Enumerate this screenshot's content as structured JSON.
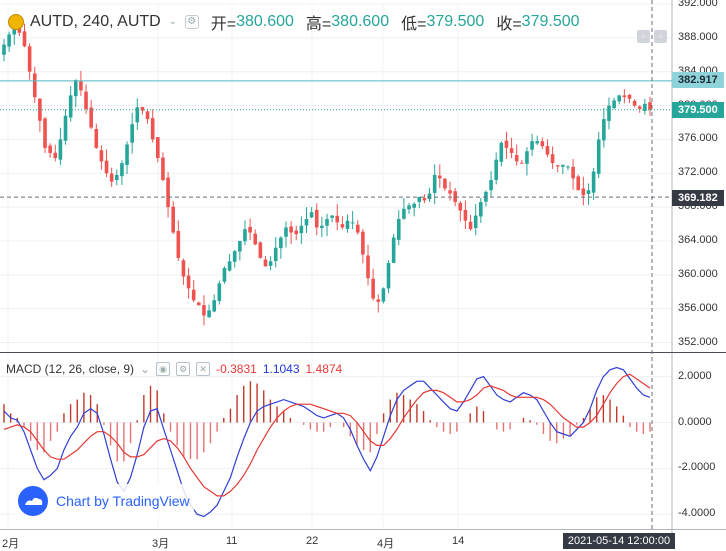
{
  "header": {
    "symbol": "AUTD, 240, AUTD",
    "open_label": "开=",
    "open": "380.600",
    "high_label": "高=",
    "high": "380.600",
    "low_label": "低=",
    "low": "379.500",
    "close_label": "收=",
    "close": "379.500"
  },
  "price_tags": {
    "upper": "382.917",
    "last": "379.500",
    "lower": "369.182"
  },
  "y_ticks": [
    "392.000",
    "388.000",
    "384.000",
    "380.000",
    "376.000",
    "372.000",
    "368.000",
    "364.000",
    "360.000",
    "356.000",
    "352.000"
  ],
  "macd_y_ticks": [
    "2.0000",
    "0.0000",
    "-2.0000",
    "-4.0000"
  ],
  "x_ticks": [
    "2月",
    "3月",
    "11",
    "22",
    "4月",
    "14"
  ],
  "time_tag": "2021-05-14 12:00:00",
  "macd": {
    "label": "MACD (12, 26, close, 9)",
    "hist": "-0.3831",
    "macd": "1.1043",
    "signal": "1.4874"
  },
  "logo_text": "Chart by TradingView",
  "chart_data": {
    "type": "candlestick",
    "symbol": "AUTD",
    "interval": "240",
    "ylim": [
      351,
      392
    ],
    "x_start": "2021-01-29",
    "x_end": "2021-05-14",
    "x_tick_labels": [
      "2月",
      "3月",
      "11",
      "22",
      "4月",
      "14"
    ],
    "close": [
      387.2,
      388.4,
      389.8,
      388.6,
      387.0,
      384.0,
      381.0,
      378.2,
      375.0,
      374.4,
      373.8,
      376.0,
      378.8,
      381.2,
      383.0,
      381.8,
      379.6,
      377.4,
      375.0,
      373.4,
      372.0,
      371.0,
      371.8,
      373.2,
      375.4,
      377.8,
      379.8,
      379.4,
      378.4,
      376.0,
      373.8,
      371.2,
      368.0,
      365.0,
      362.0,
      359.8,
      358.4,
      357.0,
      356.4,
      355.2,
      355.8,
      357.0,
      359.0,
      360.8,
      361.6,
      362.8,
      364.0,
      365.4,
      365.0,
      363.6,
      362.0,
      361.0,
      361.6,
      363.2,
      364.4,
      365.6,
      365.0,
      364.8,
      365.8,
      366.6,
      367.4,
      365.6,
      365.8,
      366.6,
      367.0,
      366.2,
      365.6,
      366.4,
      366.2,
      365.0,
      362.4,
      359.6,
      357.2,
      356.8,
      358.4,
      361.4,
      364.4,
      366.6,
      367.8,
      368.2,
      368.4,
      369.2,
      368.8,
      369.6,
      371.8,
      371.4,
      370.2,
      369.6,
      368.6,
      367.6,
      366.4,
      365.4,
      367.0,
      368.6,
      369.8,
      371.2,
      373.6,
      375.6,
      375.0,
      374.4,
      373.4,
      373.2,
      374.6,
      375.8,
      375.8,
      375.2,
      374.2,
      373.2,
      372.8,
      373.0,
      372.8,
      371.4,
      370.0,
      369.4,
      370.0,
      372.2,
      376.0,
      378.4,
      380.0,
      380.6,
      381.2,
      381.0,
      380.8,
      380.0,
      379.6,
      380.2,
      379.5
    ],
    "macd": [
      0.5,
      0.2,
      0.1,
      -0.4,
      -1.2,
      -2.0,
      -2.5,
      -2.3,
      -2.0,
      -1.2,
      -0.6,
      -0.2,
      0.4,
      0.6,
      0.4,
      -0.5,
      -1.6,
      -2.6,
      -3.0,
      -2.4,
      -1.4,
      -0.2,
      0.5,
      0.6,
      -0.3,
      -1.2,
      -2.1,
      -3.0,
      -3.6,
      -4.0,
      -4.1,
      -3.9,
      -3.6,
      -3.0,
      -2.4,
      -1.5,
      -0.7,
      0.0,
      0.5,
      0.7,
      0.8,
      0.9,
      1.0,
      0.9,
      0.8,
      0.7,
      0.5,
      0.3,
      0.2,
      0.3,
      0.4,
      0.2,
      -0.3,
      -1.0,
      -1.6,
      -2.1,
      -1.5,
      -0.6,
      0.3,
      1.0,
      1.4,
      1.6,
      1.8,
      1.8,
      1.5,
      1.2,
      0.9,
      0.6,
      0.5,
      0.9,
      1.4,
      1.9,
      2.0,
      1.6,
      1.2,
      1.0,
      0.9,
      1.1,
      1.3,
      1.2,
      1.0,
      0.5,
      0.0,
      -0.4,
      -0.5,
      -0.6,
      -0.3,
      0.0,
      0.6,
      1.4,
      2.0,
      2.3,
      2.4,
      2.3,
      1.9,
      1.5,
      1.2,
      1.1
    ],
    "signal": [
      -0.3,
      -0.2,
      -0.1,
      -0.2,
      -0.4,
      -0.8,
      -1.2,
      -1.5,
      -1.6,
      -1.6,
      -1.4,
      -1.2,
      -0.9,
      -0.6,
      -0.4,
      -0.4,
      -0.6,
      -0.9,
      -1.3,
      -1.5,
      -1.5,
      -1.4,
      -1.1,
      -0.8,
      -0.7,
      -0.8,
      -1.1,
      -1.5,
      -2.0,
      -2.4,
      -2.8,
      -3.0,
      -3.2,
      -3.2,
      -3.0,
      -2.7,
      -2.3,
      -1.8,
      -1.2,
      -0.7,
      -0.2,
      0.2,
      0.5,
      0.7,
      0.8,
      0.8,
      0.8,
      0.7,
      0.6,
      0.5,
      0.4,
      0.4,
      0.3,
      0.0,
      -0.4,
      -0.8,
      -1.0,
      -1.0,
      -0.7,
      -0.3,
      0.2,
      0.6,
      1.0,
      1.3,
      1.4,
      1.4,
      1.3,
      1.1,
      0.9,
      0.9,
      1.0,
      1.2,
      1.5,
      1.6,
      1.5,
      1.4,
      1.2,
      1.1,
      1.1,
      1.1,
      1.1,
      1.0,
      0.8,
      0.5,
      0.2,
      0.0,
      -0.2,
      -0.2,
      0.0,
      0.3,
      0.8,
      1.3,
      1.7,
      2.0,
      2.1,
      1.9,
      1.7,
      1.5
    ],
    "horizontal_lines": [
      382.917,
      379.5,
      369.182
    ]
  }
}
